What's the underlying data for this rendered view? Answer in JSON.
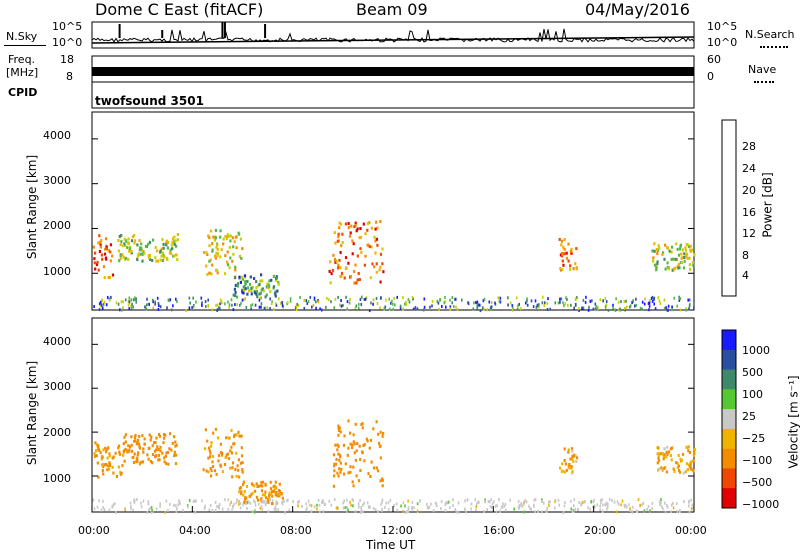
{
  "header": {
    "title": "Dome C East (fitACF)",
    "beam": "Beam 09",
    "date": "04/May/2016"
  },
  "panels": {
    "nsky": {
      "label": "N.Sky",
      "tick_top": "10^5",
      "tick_bottom": "10^0",
      "right_label": "N.Search",
      "right_tick_top": "10^5",
      "right_tick_bottom": "10^0"
    },
    "freq": {
      "label_top": "Freq.",
      "label_bottom": "[MHz]",
      "tick_top": "18",
      "tick_bottom": "8",
      "right_label": "Nave",
      "right_tick_top": "60",
      "right_tick_bottom": "0"
    },
    "cpid": {
      "label": "CPID",
      "text": "twofsound 3501"
    }
  },
  "colorbars": {
    "power": {
      "label": "Power [dB]",
      "ticks": [
        "4",
        "8",
        "12",
        "16",
        "20",
        "24",
        "28"
      ],
      "colors": [
        "#1a1aff",
        "#2a4ea0",
        "#3d8a6a",
        "#55b84a",
        "#c8d000",
        "#f0b400",
        "#f48c00",
        "#f04800",
        "#e00000"
      ]
    },
    "velocity": {
      "label": "Velocity [m s⁻¹]",
      "ticks": [
        "1000",
        "500",
        "100",
        "25",
        "−25",
        "−100",
        "−500",
        "−1000"
      ],
      "colors": [
        "#1a1aff",
        "#2a4ea0",
        "#3d8a6a",
        "#55c832",
        "#c8c8c8",
        "#f0b400",
        "#f48c00",
        "#f04800",
        "#e00000"
      ]
    }
  },
  "axes": {
    "ylabel": "Slant Range [km]",
    "xlabel": "Time UT",
    "yticks": [
      "1000",
      "2000",
      "3000",
      "4000"
    ],
    "xticks": [
      "00:00",
      "04:00",
      "08:00",
      "12:00",
      "16:00",
      "20:00",
      "00:00"
    ]
  },
  "chart_data": [
    {
      "type": "heatmap",
      "title": "",
      "xlabel": "Time UT",
      "ylabel": "Slant Range [km]",
      "colorbar_label": "Power [dB]",
      "x_range_hours": [
        0,
        24
      ],
      "y_range_km": [
        180,
        4600
      ],
      "colorbar_range": [
        0,
        32
      ],
      "regions": [
        {
          "t_start": 0.0,
          "t_end": 0.8,
          "range_min": 900,
          "range_max": 1900,
          "value": 26
        },
        {
          "t_start": 1.0,
          "t_end": 3.4,
          "range_min": 1300,
          "range_max": 1900,
          "value": 14
        },
        {
          "t_start": 4.4,
          "t_end": 6.0,
          "range_min": 1000,
          "range_max": 2000,
          "value": 18
        },
        {
          "t_start": 5.6,
          "t_end": 7.4,
          "range_min": 500,
          "range_max": 1000,
          "value": 10
        },
        {
          "t_start": 9.4,
          "t_end": 11.6,
          "range_min": 800,
          "range_max": 2200,
          "value": 24
        },
        {
          "t_start": 18.6,
          "t_end": 19.3,
          "range_min": 1100,
          "range_max": 1800,
          "value": 22
        },
        {
          "t_start": 22.3,
          "t_end": 24.0,
          "range_min": 1100,
          "range_max": 1700,
          "value": 15
        }
      ]
    },
    {
      "type": "heatmap",
      "title": "",
      "xlabel": "Time UT",
      "ylabel": "Slant Range [km]",
      "colorbar_label": "Velocity [m s⁻¹]",
      "x_range_hours": [
        0,
        24
      ],
      "y_range_km": [
        180,
        4600
      ],
      "regions": [
        {
          "t_start": 0.0,
          "t_end": 1.2,
          "range_min": 1000,
          "range_max": 1800,
          "value": -150
        },
        {
          "t_start": 1.2,
          "t_end": 3.4,
          "range_min": 1300,
          "range_max": 2000,
          "value": -200
        },
        {
          "t_start": 4.4,
          "t_end": 6.0,
          "range_min": 1000,
          "range_max": 2100,
          "value": -150
        },
        {
          "t_start": 5.8,
          "t_end": 7.6,
          "range_min": 400,
          "range_max": 900,
          "value": -150
        },
        {
          "t_start": 9.6,
          "t_end": 11.6,
          "range_min": 800,
          "range_max": 2300,
          "value": -200
        },
        {
          "t_start": 18.6,
          "t_end": 19.3,
          "range_min": 1100,
          "range_max": 1700,
          "value": -80
        },
        {
          "t_start": 22.5,
          "t_end": 24.0,
          "range_min": 1100,
          "range_max": 1700,
          "value": -120
        }
      ]
    }
  ]
}
